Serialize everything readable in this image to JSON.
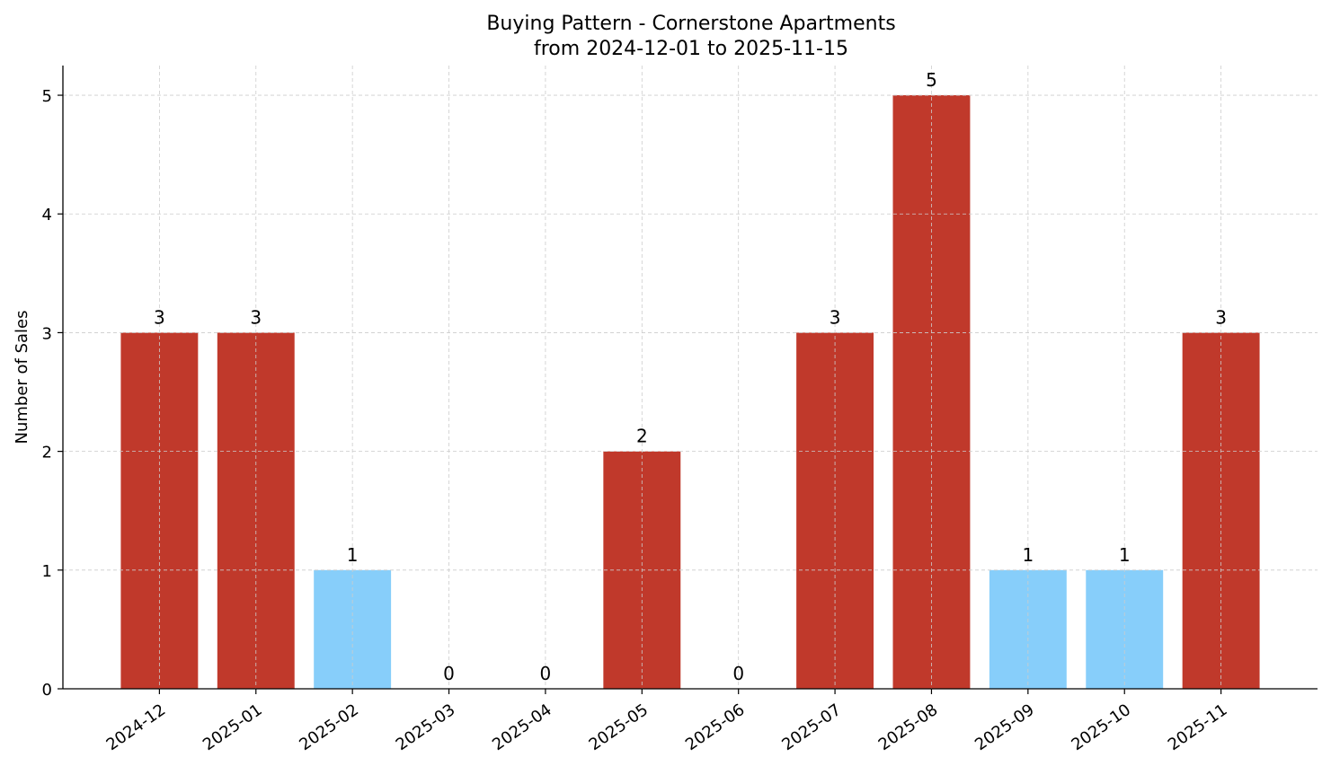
{
  "chart_data": {
    "type": "bar",
    "title": "Buying Pattern - Cornerstone Apartments",
    "subtitle": "from 2024-12-01 to 2025-11-15",
    "xlabel": "",
    "ylabel": "Number of Sales",
    "categories": [
      "2024-12",
      "2025-01",
      "2025-02",
      "2025-03",
      "2025-04",
      "2025-05",
      "2025-06",
      "2025-07",
      "2025-08",
      "2025-09",
      "2025-10",
      "2025-11"
    ],
    "values": [
      3,
      3,
      1,
      0,
      0,
      2,
      0,
      3,
      5,
      1,
      1,
      3
    ],
    "bar_colors": [
      "#c0392b",
      "#c0392b",
      "#87cefa",
      "#87cefa",
      "#87cefa",
      "#c0392b",
      "#87cefa",
      "#c0392b",
      "#c0392b",
      "#87cefa",
      "#87cefa",
      "#c0392b"
    ],
    "ylim": [
      0,
      5.25
    ],
    "yticks": [
      0,
      1,
      2,
      3,
      4,
      5
    ],
    "grid": true,
    "data_labels": true
  }
}
